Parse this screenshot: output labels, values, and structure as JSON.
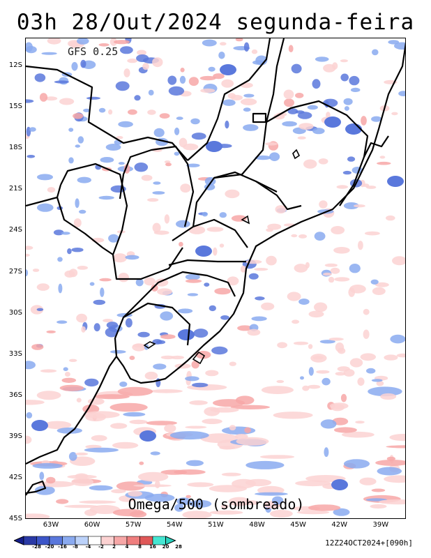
{
  "title": "03h 28/Out/2024 segunda-feira",
  "model_label": "GFS 0.25",
  "field_label": "Omega/500 (sombreado)",
  "run_info": "12Z24OCT2024+[090h]",
  "lat_ticks": [
    "12S",
    "15S",
    "18S",
    "21S",
    "24S",
    "27S",
    "30S",
    "33S",
    "36S",
    "39S",
    "42S",
    "45S"
  ],
  "lon_ticks": [
    "63W",
    "60W",
    "57W",
    "54W",
    "51W",
    "48W",
    "45W",
    "42W",
    "39W"
  ],
  "colorbar": {
    "labels": [
      "-28",
      "-20",
      "-16",
      "-8",
      "-4",
      "-2",
      "2",
      "4",
      "8",
      "16",
      "20",
      "28"
    ],
    "colors": [
      "#141e8c",
      "#2a3aa6",
      "#3c55c8",
      "#5a78dc",
      "#8aaaf0",
      "#bcd2fa",
      "#ffffff",
      "#fcd2d2",
      "#f7a7a7",
      "#ef7e7e",
      "#e05858",
      "#46e6d2",
      "#2ad2be"
    ]
  },
  "map": {
    "region": "South America — South/Southeast Brazil, Paraguay, Uruguay, Argentina",
    "lat_range": [
      -45,
      -11
    ],
    "lon_range": [
      -65.5,
      -36.5
    ],
    "colors": {
      "negative": "#5a78dc",
      "negative_light": "#8aaaf0",
      "positive": "#f7a7a7",
      "positive_light": "#fcd2d2",
      "border": "#000000"
    }
  }
}
